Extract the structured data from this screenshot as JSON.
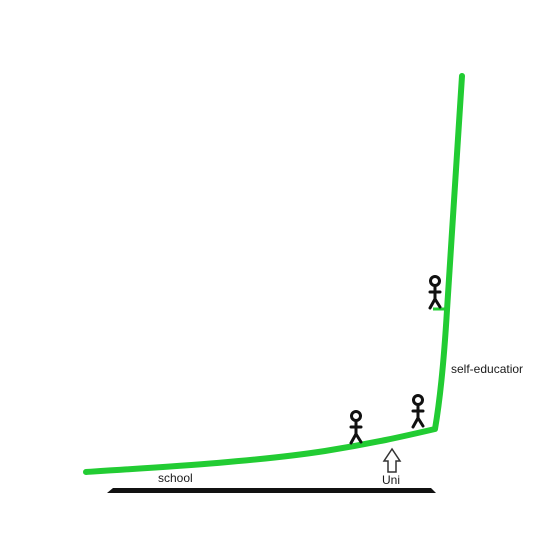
{
  "labels": {
    "school": "school",
    "uni": "Uni",
    "self_education": "self-educatior"
  },
  "colors": {
    "curve": "#22cc33",
    "ground": "#111111",
    "figure": "#111111",
    "background": "#ffffff"
  },
  "elements": {
    "figures": 3,
    "arrow": "up-arrow-outline"
  }
}
